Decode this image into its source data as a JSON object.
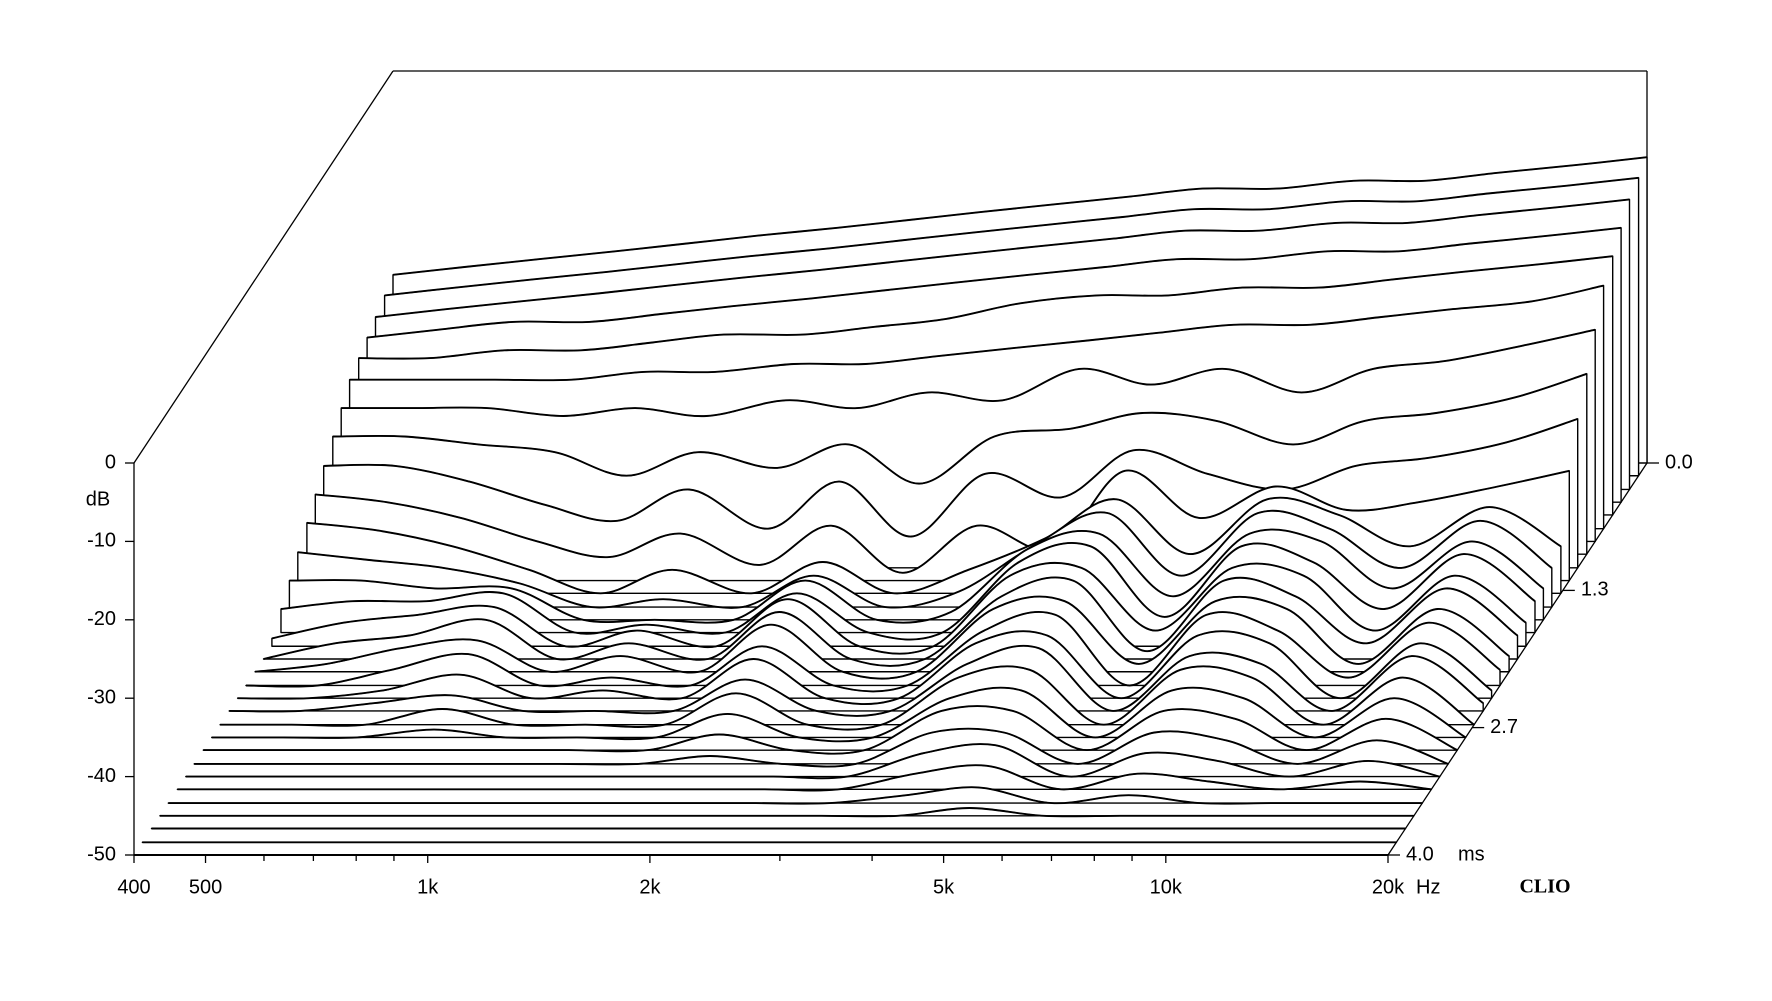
{
  "chart_data": {
    "type": "waterfall",
    "y_label": "dB",
    "x_label": "Hz",
    "z_label": "ms",
    "watermark": "CLIO",
    "x": [
      400,
      500,
      630,
      800,
      1000,
      1250,
      1600,
      2000,
      2500,
      3150,
      4000,
      5000,
      6300,
      8000,
      10000,
      12500,
      16000,
      20000
    ],
    "xlim": [
      400,
      20000
    ],
    "log_x": true,
    "xticks": [
      400,
      500,
      {
        "value": 1000,
        "label": "1k"
      },
      {
        "value": 2000,
        "label": "2k"
      },
      {
        "value": 5000,
        "label": "5k"
      },
      {
        "value": 10000,
        "label": "10k"
      },
      {
        "value": 20000,
        "label": "20k"
      }
    ],
    "xminorticks": [
      600,
      700,
      800,
      900,
      3000,
      4000,
      6000,
      7000,
      8000,
      9000
    ],
    "ylim": [
      -50,
      0
    ],
    "yticks": [
      0,
      -10,
      -20,
      -30,
      -40,
      -50
    ],
    "zlim": [
      0,
      4
    ],
    "zticks": [
      {
        "value": 0,
        "label": "0.0"
      },
      1.3,
      2.7,
      {
        "value": 4,
        "label": "4.0"
      }
    ],
    "line_color": "#000000",
    "fill_color": "#ffffff",
    "series": [
      {
        "z": 0,
        "values": [
          -26,
          -25,
          -24,
          -23,
          -22,
          -21,
          -20,
          -19,
          -18,
          -17,
          -16,
          -15,
          -15,
          -14,
          -14,
          -13,
          -12,
          -11
        ]
      },
      {
        "z": 0.13,
        "values": [
          -27,
          -26,
          -25,
          -24,
          -23,
          -22,
          -21,
          -20,
          -19,
          -18,
          -17,
          -16,
          -16,
          -15,
          -15,
          -14,
          -13,
          -12
        ]
      },
      {
        "z": 0.27,
        "values": [
          -28,
          -27,
          -26,
          -25,
          -24,
          -23,
          -22,
          -21,
          -20,
          -19,
          -18,
          -17,
          -17,
          -16,
          -16,
          -15,
          -14,
          -13
        ]
      },
      {
        "z": 0.4,
        "values": [
          -29,
          -28,
          -27,
          -27,
          -26,
          -25,
          -24,
          -23,
          -22,
          -21,
          -20,
          -19,
          -19,
          -18,
          -18,
          -17,
          -16,
          -15
        ]
      },
      {
        "z": 0.53,
        "values": [
          -30,
          -30,
          -29,
          -29,
          -28,
          -27,
          -27,
          -26,
          -25,
          -23,
          -22,
          -22,
          -21,
          -21,
          -20,
          -19,
          -18,
          -17
        ]
      },
      {
        "z": 0.67,
        "values": [
          -31,
          -31,
          -31,
          -31,
          -30,
          -30,
          -29,
          -29,
          -28,
          -27,
          -26,
          -25,
          -24,
          -24,
          -23,
          -22,
          -21,
          -19
        ]
      },
      {
        "z": 0.8,
        "values": [
          -33,
          -33,
          -33,
          -34,
          -33,
          -34,
          -32,
          -33,
          -31,
          -32,
          -28,
          -30,
          -28,
          -31,
          -28,
          -27,
          -25,
          -23
        ]
      },
      {
        "z": 0.93,
        "values": [
          -35,
          -35,
          -36,
          -37,
          -40,
          -37,
          -39,
          -36,
          -41,
          -35,
          -34,
          -32,
          -33,
          -36,
          -33,
          -32,
          -30,
          -27
        ]
      },
      {
        "z": 1.07,
        "values": [
          -37,
          -37,
          -39,
          -42,
          -44,
          -40,
          -45,
          -39,
          -46,
          -38,
          -41,
          -35,
          -38,
          -40,
          -37,
          -36,
          -34,
          -31
        ]
      },
      {
        "z": 1.2,
        "values": [
          -39,
          -40,
          -42,
          -45,
          -47,
          -44,
          -48,
          -43,
          -49,
          -43,
          -46,
          -36,
          -42,
          -38,
          -41,
          -40,
          -38,
          -36
        ]
      },
      {
        "z": 1.33,
        "values": [
          -41,
          -42,
          -44,
          -47,
          -50,
          -47,
          -50,
          -46,
          -50,
          -47,
          -43,
          -38,
          -45,
          -38,
          -40,
          -44,
          -39,
          -44
        ]
      },
      {
        "z": 1.47,
        "values": [
          -43,
          -44,
          -45,
          -47,
          -50,
          -49,
          -50,
          -46,
          -50,
          -48,
          -42,
          -38,
          -46,
          -38,
          -40,
          -45,
          -39,
          -45
        ]
      },
      {
        "z": 1.6,
        "values": [
          -45,
          -45,
          -46,
          -46,
          -50,
          -50,
          -50,
          -45,
          -50,
          -49,
          -41,
          -39,
          -47,
          -39,
          -40,
          -46,
          -40,
          -46
        ]
      },
      {
        "z": 1.73,
        "values": [
          -47,
          -46,
          -46,
          -45,
          -50,
          -49,
          -50,
          -45,
          -50,
          -50,
          -41,
          -39,
          -48,
          -39,
          -41,
          -47,
          -40,
          -46
        ]
      },
      {
        "z": 1.87,
        "values": [
          -49,
          -47,
          -46,
          -45,
          -50,
          -48,
          -50,
          -44,
          -50,
          -50,
          -41,
          -40,
          -48,
          -40,
          -41,
          -48,
          -41,
          -47
        ]
      },
      {
        "z": 2,
        "values": [
          -50,
          -48,
          -47,
          -45,
          -50,
          -48,
          -50,
          -44,
          -50,
          -50,
          -42,
          -40,
          -49,
          -40,
          -42,
          -48,
          -41,
          -47
        ]
      },
      {
        "z": 2.13,
        "values": [
          -50,
          -49,
          -47,
          -46,
          -50,
          -48,
          -50,
          -44,
          -50,
          -50,
          -42,
          -41,
          -49,
          -41,
          -42,
          -49,
          -42,
          -48
        ]
      },
      {
        "z": 2.27,
        "values": [
          -50,
          -50,
          -48,
          -46,
          -50,
          -49,
          -50,
          -45,
          -50,
          -50,
          -43,
          -41,
          -50,
          -41,
          -43,
          -49,
          -42,
          -48
        ]
      },
      {
        "z": 2.4,
        "values": [
          -50,
          -50,
          -49,
          -47,
          -50,
          -49,
          -50,
          -45,
          -50,
          -50,
          -43,
          -42,
          -50,
          -42,
          -43,
          -50,
          -43,
          -49
        ]
      },
      {
        "z": 2.53,
        "values": [
          -50,
          -50,
          -49,
          -48,
          -50,
          -50,
          -50,
          -46,
          -50,
          -50,
          -44,
          -42,
          -50,
          -43,
          -44,
          -50,
          -43,
          -49
        ]
      },
      {
        "z": 2.67,
        "values": [
          -50,
          -50,
          -50,
          -48,
          -50,
          -50,
          -50,
          -46,
          -50,
          -50,
          -44,
          -43,
          -50,
          -43,
          -44,
          -50,
          -44,
          -50
        ]
      },
      {
        "z": 2.8,
        "values": [
          -50,
          -50,
          -50,
          -49,
          -50,
          -50,
          -50,
          -47,
          -50,
          -50,
          -45,
          -44,
          -50,
          -44,
          -45,
          -50,
          -45,
          -50
        ]
      },
      {
        "z": 2.93,
        "values": [
          -50,
          -50,
          -50,
          -50,
          -50,
          -50,
          -50,
          -48,
          -50,
          -50,
          -45,
          -45,
          -50,
          -45,
          -46,
          -50,
          -46,
          -50
        ]
      },
      {
        "z": 3.07,
        "values": [
          -50,
          -50,
          -50,
          -50,
          -50,
          -50,
          -50,
          -49,
          -50,
          -50,
          -46,
          -46,
          -50,
          -46,
          -47,
          -50,
          -47,
          -50
        ]
      },
      {
        "z": 3.2,
        "values": [
          -50,
          -50,
          -50,
          -50,
          -50,
          -50,
          -50,
          -50,
          -50,
          -50,
          -47,
          -46,
          -50,
          -47,
          -48,
          -50,
          -48,
          -50
        ]
      },
      {
        "z": 3.33,
        "values": [
          -50,
          -50,
          -50,
          -50,
          -50,
          -50,
          -50,
          -50,
          -50,
          -50,
          -48,
          -47,
          -50,
          -48,
          -49,
          -50,
          -49,
          -50
        ]
      },
      {
        "z": 3.47,
        "values": [
          -50,
          -50,
          -50,
          -50,
          -50,
          -50,
          -50,
          -50,
          -50,
          -50,
          -49,
          -48,
          -50,
          -49,
          -50,
          -50,
          -50,
          -50
        ]
      },
      {
        "z": 3.6,
        "values": [
          -50,
          -50,
          -50,
          -50,
          -50,
          -50,
          -50,
          -50,
          -50,
          -50,
          -50,
          -49,
          -50,
          -50,
          -50,
          -50,
          -50,
          -50
        ]
      },
      {
        "z": 3.73,
        "values": [
          -50,
          -50,
          -50,
          -50,
          -50,
          -50,
          -50,
          -50,
          -50,
          -50,
          -50,
          -50,
          -50,
          -50,
          -50,
          -50,
          -50,
          -50
        ]
      },
      {
        "z": 3.87,
        "values": [
          -50,
          -50,
          -50,
          -50,
          -50,
          -50,
          -50,
          -50,
          -50,
          -50,
          -50,
          -50,
          -50,
          -50,
          -50,
          -50,
          -50,
          -50
        ]
      },
      {
        "z": 4,
        "values": [
          -50,
          -50,
          -50,
          -50,
          -50,
          -50,
          -50,
          -50,
          -50,
          -50,
          -50,
          -50,
          -50,
          -50,
          -50,
          -50,
          -50,
          -50
        ]
      }
    ]
  }
}
